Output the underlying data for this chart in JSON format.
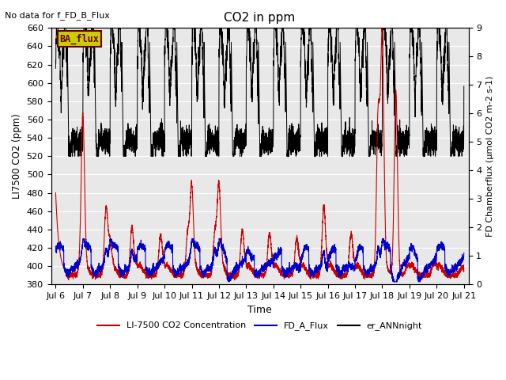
{
  "title": "CO2 in ppm",
  "top_left_text": "No data for f_FD_B_Flux",
  "box_label": "BA_flux",
  "xlabel": "Time",
  "ylabel_left": "LI7500 CO2 (ppm)",
  "ylabel_right": "FD Chamberflux (μmol CO2 m-2 s-1)",
  "ylim_left": [
    380,
    660
  ],
  "ylim_right": [
    0.0,
    9.0
  ],
  "xlim": [
    5.83,
    21.17
  ],
  "xtick_labels": [
    "Jul 6",
    "Jul 7",
    "Jul 8",
    "Jul 9",
    "Jul 10",
    "Jul 11",
    "Jul 12",
    "Jul 13",
    "Jul 14",
    "Jul 15",
    "Jul 16",
    "Jul 17",
    "Jul 18",
    "Jul 19",
    "Jul 20",
    "Jul 21"
  ],
  "xtick_positions": [
    6,
    7,
    8,
    9,
    10,
    11,
    12,
    13,
    14,
    15,
    16,
    17,
    18,
    19,
    20,
    21
  ],
  "yticks_left": [
    380,
    400,
    420,
    440,
    460,
    480,
    500,
    520,
    540,
    560,
    580,
    600,
    620,
    640,
    660
  ],
  "yticks_right": [
    0.0,
    1.0,
    2.0,
    3.0,
    4.0,
    5.0,
    6.0,
    7.0,
    8.0,
    9.0
  ],
  "legend_entries": [
    {
      "label": "LI-7500 CO2 Concentration",
      "color": "#cc0000",
      "lw": 1.5
    },
    {
      "label": "FD_A_Flux",
      "color": "#0000cc",
      "lw": 1.5
    },
    {
      "label": "er_ANNnight",
      "color": "#000000",
      "lw": 1.5
    }
  ],
  "bg_color": "#e8e8e8",
  "box_color": "#cccc00",
  "box_text_color": "#660000",
  "grid_color": "#ffffff",
  "figsize": [
    6.4,
    4.8
  ],
  "dpi": 100
}
